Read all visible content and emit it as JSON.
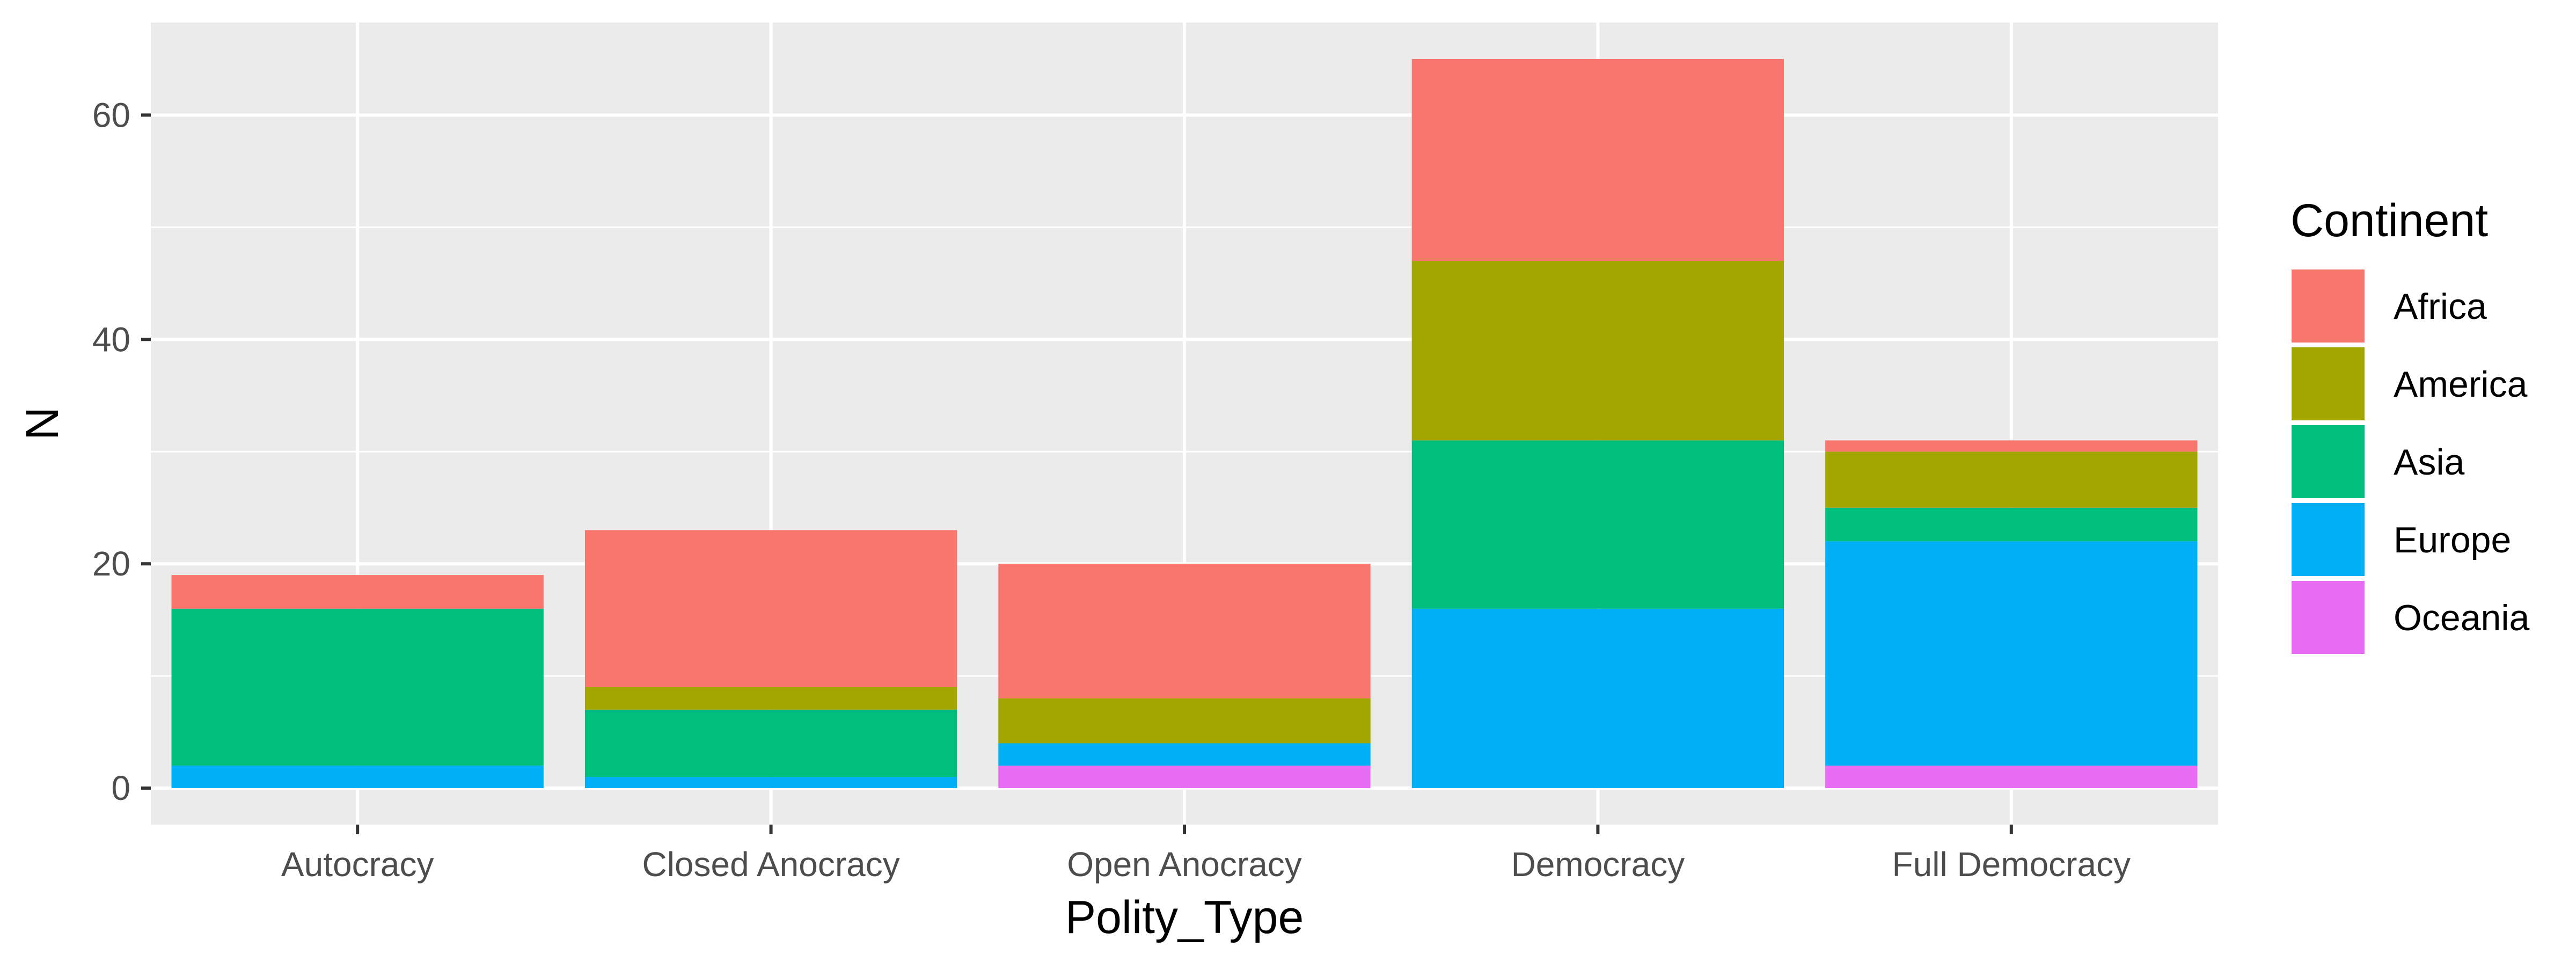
{
  "chart_data": {
    "type": "bar",
    "stacked": true,
    "categories": [
      "Autocracy",
      "Closed Anocracy",
      "Open Anocracy",
      "Democracy",
      "Full Democracy"
    ],
    "series": [
      {
        "name": "Africa",
        "color": "#F8766D",
        "values": [
          3,
          14,
          12,
          18,
          1
        ]
      },
      {
        "name": "America",
        "color": "#A3A500",
        "values": [
          0,
          2,
          4,
          16,
          5
        ]
      },
      {
        "name": "Asia",
        "color": "#00BF7D",
        "values": [
          14,
          6,
          0,
          15,
          3
        ]
      },
      {
        "name": "Europe",
        "color": "#00B0F6",
        "values": [
          2,
          1,
          2,
          16,
          20
        ]
      },
      {
        "name": "Oceania",
        "color": "#E76BF3",
        "values": [
          0,
          0,
          2,
          0,
          2
        ]
      }
    ],
    "xlabel": "Polity_Type",
    "ylabel": "N",
    "ylim": [
      -3.25,
      68.25
    ],
    "yticks": [
      0,
      20,
      40,
      60
    ],
    "grid": true,
    "legend": {
      "title": "Continent",
      "position": "right"
    },
    "panel_background": "#EBEBEB"
  }
}
